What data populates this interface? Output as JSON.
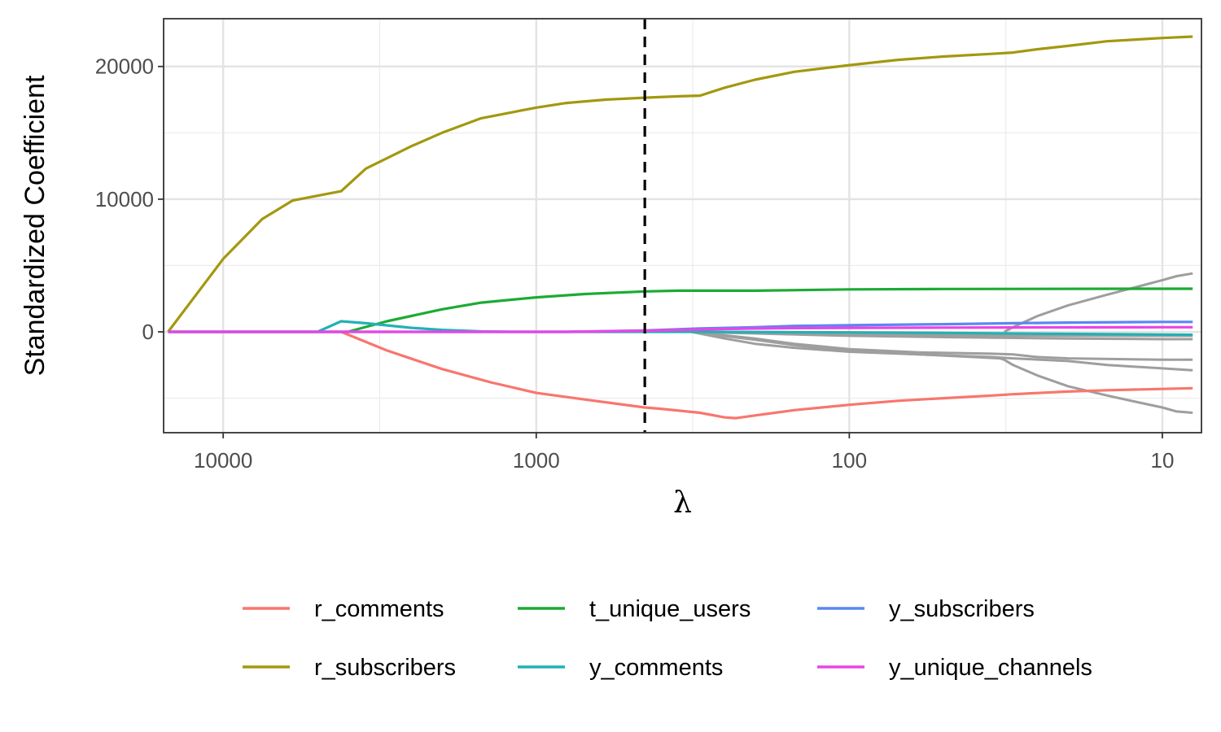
{
  "chart_data": {
    "type": "line",
    "title": "",
    "xlabel": "λ",
    "ylabel": "Standardized Coefficient",
    "x_scale": "log10-reversed",
    "xlim": [
      15500,
      7.5
    ],
    "ylim": [
      -7600,
      23600
    ],
    "x_ticks": [
      10000,
      1000,
      100,
      10
    ],
    "x_tick_labels": [
      "10000",
      "1000",
      "100",
      "10"
    ],
    "y_ticks": [
      0,
      10000,
      20000
    ],
    "y_tick_labels": [
      "0",
      "10000",
      "20000"
    ],
    "grid": true,
    "cv_lambda_line": 450,
    "legend_position": "bottom",
    "series": [
      {
        "name": "r_comments",
        "color": "#F8766D",
        "points": [
          [
            15000,
            0
          ],
          [
            4200,
            0
          ],
          [
            3000,
            -1400
          ],
          [
            2000,
            -2800
          ],
          [
            1400,
            -3800
          ],
          [
            1000,
            -4600
          ],
          [
            700,
            -5100
          ],
          [
            450,
            -5700
          ],
          [
            400,
            -5800
          ],
          [
            300,
            -6100
          ],
          [
            250,
            -6450
          ],
          [
            230,
            -6500
          ],
          [
            200,
            -6300
          ],
          [
            150,
            -5900
          ],
          [
            100,
            -5500
          ],
          [
            70,
            -5200
          ],
          [
            50,
            -5000
          ],
          [
            35,
            -4800
          ],
          [
            30,
            -4700
          ],
          [
            20,
            -4500
          ],
          [
            15,
            -4400
          ],
          [
            10,
            -4300
          ],
          [
            8,
            -4250
          ]
        ]
      },
      {
        "name": "r_subscribers",
        "color": "#A3980F",
        "points": [
          [
            15000,
            0
          ],
          [
            10000,
            5500
          ],
          [
            7500,
            8500
          ],
          [
            6000,
            9900
          ],
          [
            4200,
            10600
          ],
          [
            3500,
            12300
          ],
          [
            2500,
            14000
          ],
          [
            2000,
            15000
          ],
          [
            1500,
            16100
          ],
          [
            1000,
            16900
          ],
          [
            800,
            17250
          ],
          [
            600,
            17500
          ],
          [
            450,
            17650
          ],
          [
            350,
            17750
          ],
          [
            300,
            17800
          ],
          [
            250,
            18400
          ],
          [
            200,
            19000
          ],
          [
            150,
            19600
          ],
          [
            100,
            20100
          ],
          [
            70,
            20500
          ],
          [
            50,
            20750
          ],
          [
            35,
            20950
          ],
          [
            30,
            21050
          ],
          [
            25,
            21300
          ],
          [
            20,
            21550
          ],
          [
            15,
            21900
          ],
          [
            10,
            22150
          ],
          [
            8,
            22250
          ]
        ]
      },
      {
        "name": "t_unique_users",
        "color": "#1DAA35",
        "points": [
          [
            15000,
            0
          ],
          [
            4000,
            0
          ],
          [
            3000,
            800
          ],
          [
            2000,
            1700
          ],
          [
            1500,
            2200
          ],
          [
            1000,
            2600
          ],
          [
            700,
            2850
          ],
          [
            450,
            3050
          ],
          [
            350,
            3100
          ],
          [
            200,
            3100
          ],
          [
            100,
            3200
          ],
          [
            50,
            3230
          ],
          [
            10,
            3250
          ],
          [
            8,
            3250
          ]
        ]
      },
      {
        "name": "y_comments",
        "color": "#21B1B5",
        "points": [
          [
            15000,
            0
          ],
          [
            5000,
            0
          ],
          [
            4200,
            800
          ],
          [
            3500,
            650
          ],
          [
            2500,
            300
          ],
          [
            2000,
            150
          ],
          [
            1500,
            30
          ],
          [
            1200,
            0
          ],
          [
            400,
            0
          ],
          [
            300,
            0
          ],
          [
            100,
            -40
          ],
          [
            50,
            -80
          ],
          [
            20,
            -150
          ],
          [
            10,
            -200
          ],
          [
            8,
            -220
          ]
        ]
      },
      {
        "name": "y_subscribers",
        "color": "#5B87F3",
        "points": [
          [
            15000,
            0
          ],
          [
            800,
            0
          ],
          [
            450,
            100
          ],
          [
            300,
            250
          ],
          [
            200,
            350
          ],
          [
            150,
            450
          ],
          [
            100,
            500
          ],
          [
            50,
            580
          ],
          [
            30,
            650
          ],
          [
            20,
            700
          ],
          [
            10,
            750
          ],
          [
            8,
            750
          ]
        ]
      },
      {
        "name": "y_unique_channels",
        "color": "#E945E6",
        "points": [
          [
            15000,
            0
          ],
          [
            800,
            0
          ],
          [
            450,
            80
          ],
          [
            300,
            180
          ],
          [
            200,
            250
          ],
          [
            150,
            280
          ],
          [
            100,
            300
          ],
          [
            50,
            320
          ],
          [
            30,
            330
          ],
          [
            20,
            340
          ],
          [
            10,
            350
          ],
          [
            8,
            350
          ]
        ]
      }
    ],
    "unlabeled_series": [
      {
        "color": "#9E9E9E",
        "points": [
          [
            320,
            0
          ],
          [
            250,
            -500
          ],
          [
            200,
            -900
          ],
          [
            150,
            -1200
          ],
          [
            100,
            -1500
          ],
          [
            60,
            -1700
          ],
          [
            40,
            -1900
          ],
          [
            33,
            -2000
          ],
          [
            32,
            -2100
          ],
          [
            30,
            -2500
          ],
          [
            25,
            -3300
          ],
          [
            20,
            -4100
          ],
          [
            15,
            -4800
          ],
          [
            12,
            -5300
          ],
          [
            10,
            -5700
          ],
          [
            9,
            -6000
          ],
          [
            8,
            -6100
          ]
        ]
      },
      {
        "color": "#9E9E9E",
        "points": [
          [
            320,
            0
          ],
          [
            200,
            -600
          ],
          [
            150,
            -1000
          ],
          [
            100,
            -1400
          ],
          [
            60,
            -1700
          ],
          [
            35,
            -1900
          ],
          [
            30,
            -2000
          ],
          [
            20,
            -2200
          ],
          [
            15,
            -2500
          ],
          [
            10,
            -2750
          ],
          [
            8,
            -2900
          ]
        ]
      },
      {
        "color": "#9E9E9E",
        "points": [
          [
            320,
            0
          ],
          [
            200,
            -500
          ],
          [
            150,
            -900
          ],
          [
            100,
            -1300
          ],
          [
            60,
            -1550
          ],
          [
            35,
            -1650
          ],
          [
            30,
            -1700
          ],
          [
            25,
            -1900
          ],
          [
            20,
            -2000
          ],
          [
            10,
            -2100
          ],
          [
            8,
            -2100
          ]
        ]
      },
      {
        "color": "#9E9E9E",
        "points": [
          [
            320,
            0
          ],
          [
            100,
            -300
          ],
          [
            50,
            -400
          ],
          [
            20,
            -500
          ],
          [
            10,
            -550
          ],
          [
            8,
            -550
          ]
        ]
      },
      {
        "color": "#9E9E9E",
        "points": [
          [
            320,
            0
          ],
          [
            100,
            -150
          ],
          [
            50,
            -250
          ],
          [
            20,
            -300
          ],
          [
            10,
            -300
          ],
          [
            8,
            -300
          ]
        ]
      },
      {
        "color": "#9E9E9E",
        "points": [
          [
            32,
            0
          ],
          [
            30,
            350
          ],
          [
            25,
            1200
          ],
          [
            20,
            2000
          ],
          [
            15,
            2800
          ],
          [
            12,
            3400
          ],
          [
            10,
            3900
          ],
          [
            9,
            4200
          ],
          [
            8,
            4400
          ]
        ]
      }
    ]
  }
}
